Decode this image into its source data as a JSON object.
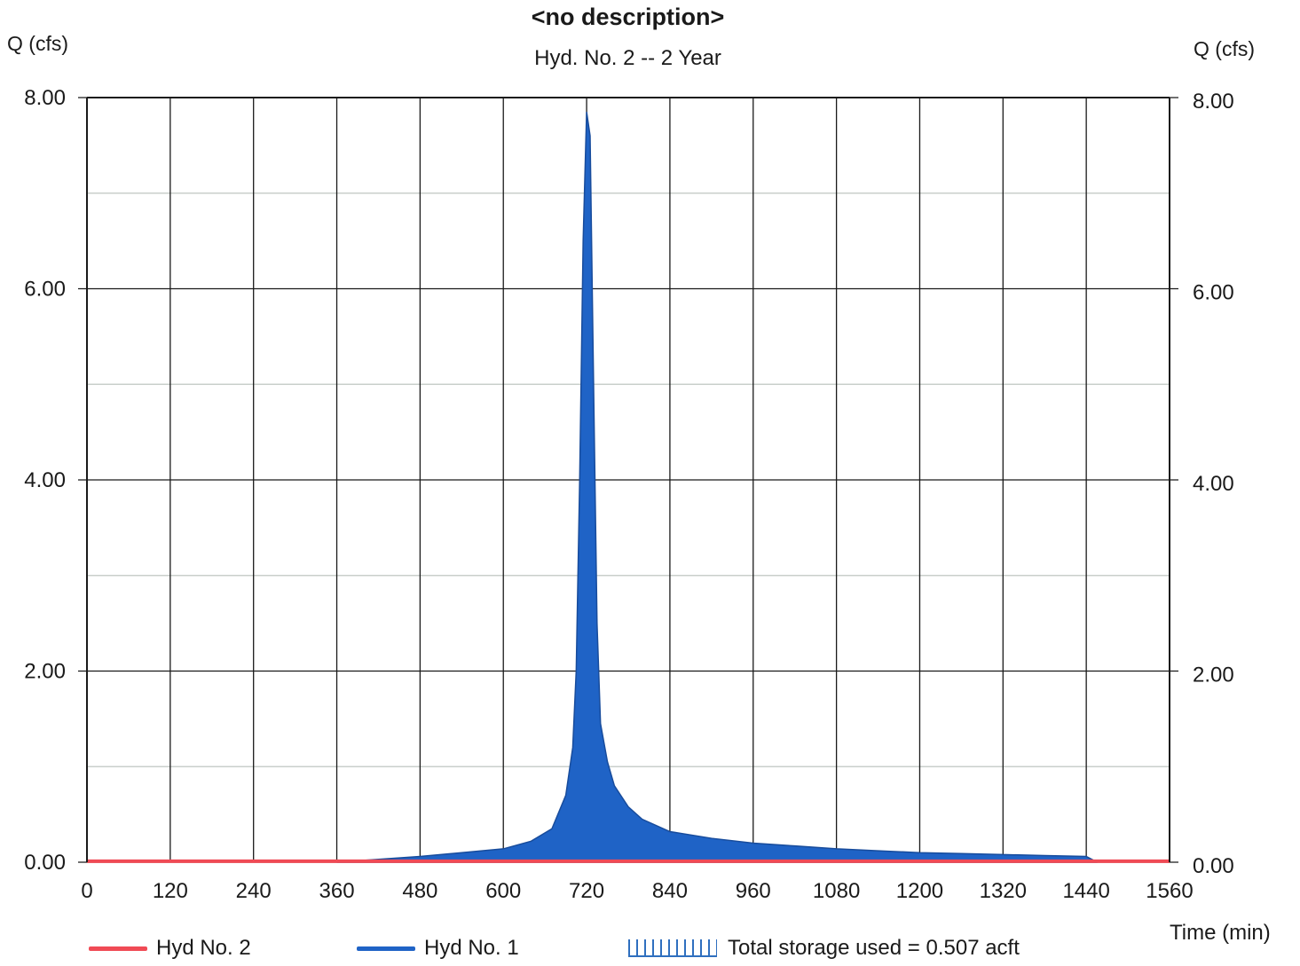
{
  "chart_data": {
    "type": "area",
    "title": "<no description>",
    "subtitle": "Hyd. No. 2 -- 2 Year",
    "ylabel_left": "Q (cfs)",
    "ylabel_right": "Q (cfs)",
    "xlabel": "Time (min)",
    "xlim": [
      0,
      1560
    ],
    "ylim": [
      0,
      8
    ],
    "x_ticks": [
      "0",
      "120",
      "240",
      "360",
      "480",
      "600",
      "720",
      "840",
      "960",
      "1080",
      "1200",
      "1320",
      "1440",
      "1560"
    ],
    "x_tick_values": [
      0,
      120,
      240,
      360,
      480,
      600,
      720,
      840,
      960,
      1080,
      1200,
      1320,
      1440,
      1560
    ],
    "y_ticks": [
      "0.00",
      "2.00",
      "4.00",
      "6.00",
      "8.00"
    ],
    "y_tick_values": [
      0,
      2,
      4,
      6,
      8
    ],
    "grid": true,
    "legend_position": "bottom",
    "series": [
      {
        "name": "Hyd No. 2",
        "color": "#f04a55",
        "style": "line",
        "x": [
          0,
          1560
        ],
        "y": [
          0.01,
          0.01
        ]
      },
      {
        "name": "Hyd No. 1",
        "color": "#1f63c6",
        "style": "area",
        "x": [
          360,
          420,
          480,
          540,
          600,
          640,
          670,
          690,
          700,
          705,
          710,
          715,
          720,
          725,
          730,
          735,
          740,
          750,
          760,
          780,
          800,
          840,
          900,
          960,
          1020,
          1080,
          1140,
          1200,
          1260,
          1320,
          1380,
          1440,
          1456
        ],
        "y": [
          0.0,
          0.03,
          0.06,
          0.1,
          0.14,
          0.22,
          0.35,
          0.7,
          1.2,
          2.0,
          4.0,
          6.5,
          7.85,
          7.6,
          5.0,
          2.5,
          1.45,
          1.05,
          0.8,
          0.58,
          0.45,
          0.32,
          0.25,
          0.2,
          0.17,
          0.14,
          0.12,
          0.1,
          0.09,
          0.08,
          0.07,
          0.06,
          0.0
        ]
      }
    ],
    "legend": {
      "hyd2": "Hyd No. 2",
      "hyd1": "Hyd No. 1",
      "storage": "Total storage used = 0.507 acft"
    }
  }
}
